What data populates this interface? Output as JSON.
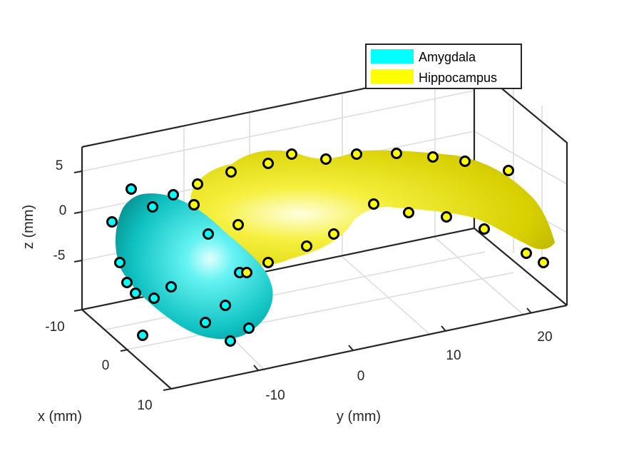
{
  "chart_data": {
    "type": "surface3d",
    "xlabel": "x (mm)",
    "ylabel": "y (mm)",
    "zlabel": "z (mm)",
    "x_ticks": [
      "-10",
      "0",
      "10"
    ],
    "y_ticks": [
      "-10",
      "0",
      "10",
      "20"
    ],
    "z_ticks": [
      "5",
      "0",
      "-5"
    ],
    "grid": true,
    "legend_position": "top-right",
    "legend": [
      {
        "name": "Amygdala",
        "color": "#00ffff"
      },
      {
        "name": "Hippocampus",
        "color": "#ffff00"
      }
    ],
    "series": [
      {
        "name": "Amygdala",
        "color": "#00ffff",
        "marker_count": 17
      },
      {
        "name": "Hippocampus",
        "color": "#ffff00",
        "marker_count": 22
      }
    ]
  }
}
